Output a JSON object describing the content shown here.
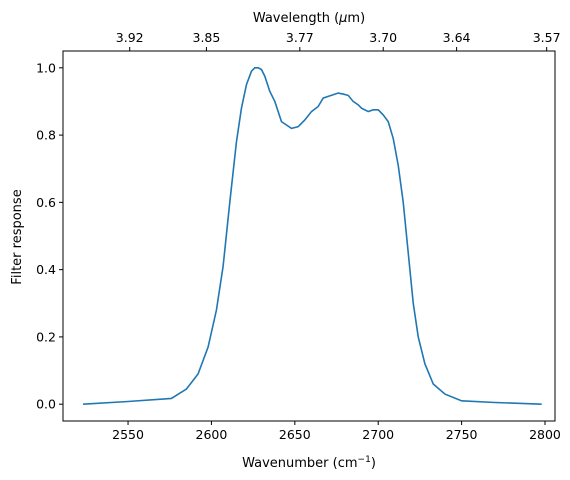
{
  "chart_data": {
    "type": "line",
    "xlabel": "Wavenumber (cm",
    "xlabel_sup": "−1",
    "xlabel_end": ")",
    "ylabel": "Filter response",
    "top_xlabel": "Wavelength (",
    "top_xlabel_mu": "μ",
    "top_xlabel_end": "m)",
    "xlim": [
      2511,
      2806
    ],
    "ylim": [
      -0.05,
      1.05
    ],
    "x_ticks": [
      2550,
      2600,
      2650,
      2700,
      2750,
      2800
    ],
    "y_ticks": [
      0.0,
      0.2,
      0.4,
      0.6,
      0.8,
      1.0
    ],
    "y_tick_labels": [
      "0.0",
      "0.2",
      "0.4",
      "0.6",
      "0.8",
      "1.0"
    ],
    "top_ticks": [
      {
        "label": "3.92",
        "wavenumber": 2551
      },
      {
        "label": "3.85",
        "wavenumber": 2597
      },
      {
        "label": "3.77",
        "wavenumber": 2653
      },
      {
        "label": "3.70",
        "wavenumber": 2703
      },
      {
        "label": "3.64",
        "wavenumber": 2747
      },
      {
        "label": "3.57",
        "wavenumber": 2801
      }
    ],
    "series": [
      {
        "color": "#1f77b4",
        "x": [
          2523,
          2550,
          2576,
          2585,
          2592,
          2598,
          2603,
          2607,
          2611,
          2615,
          2618,
          2621,
          2624,
          2626,
          2628,
          2630,
          2632,
          2635,
          2638,
          2642,
          2645,
          2648,
          2652,
          2656,
          2660,
          2664,
          2667,
          2670,
          2673,
          2676,
          2679,
          2682,
          2685,
          2688,
          2690,
          2692,
          2694,
          2697,
          2700,
          2703,
          2706,
          2709,
          2712,
          2715,
          2718,
          2721,
          2724,
          2728,
          2733,
          2740,
          2750,
          2770,
          2798
        ],
        "y": [
          0.0,
          0.008,
          0.017,
          0.045,
          0.09,
          0.17,
          0.28,
          0.41,
          0.6,
          0.78,
          0.88,
          0.95,
          0.99,
          1.0,
          1.0,
          0.995,
          0.975,
          0.93,
          0.9,
          0.84,
          0.83,
          0.82,
          0.825,
          0.845,
          0.87,
          0.885,
          0.91,
          0.915,
          0.92,
          0.925,
          0.922,
          0.918,
          0.9,
          0.89,
          0.88,
          0.875,
          0.87,
          0.875,
          0.875,
          0.86,
          0.84,
          0.79,
          0.71,
          0.6,
          0.45,
          0.3,
          0.2,
          0.12,
          0.06,
          0.03,
          0.01,
          0.005,
          0.0
        ]
      }
    ]
  }
}
